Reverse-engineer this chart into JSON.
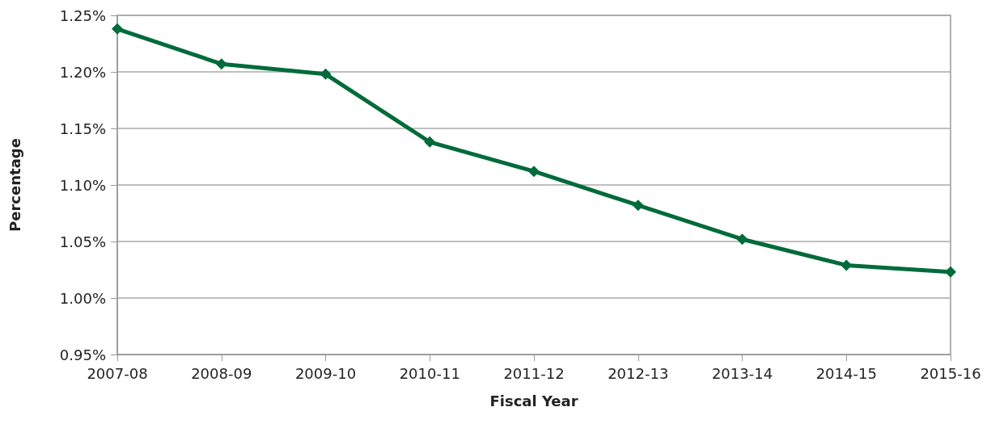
{
  "chart_data": {
    "type": "line",
    "xlabel": "Fiscal Year",
    "ylabel": "Percentage",
    "categories": [
      "2007-08",
      "2008-09",
      "2009-10",
      "2010-11",
      "2011-12",
      "2012-13",
      "2013-14",
      "2014-15",
      "2015-16"
    ],
    "series": [
      {
        "color": "#006b3a",
        "values": [
          1.238,
          1.207,
          1.198,
          1.138,
          1.112,
          1.082,
          1.052,
          1.029,
          1.023
        ]
      }
    ],
    "ylim": [
      0.95,
      1.25
    ],
    "yticks": [
      {
        "value": 0.95,
        "label": "0.95%"
      },
      {
        "value": 1.0,
        "label": "1.00%"
      },
      {
        "value": 1.05,
        "label": "1.05%"
      },
      {
        "value": 1.1,
        "label": "1.10%"
      },
      {
        "value": 1.15,
        "label": "1.15%"
      },
      {
        "value": 1.2,
        "label": "1.20%"
      },
      {
        "value": 1.25,
        "label": "1.25%"
      }
    ],
    "grid": "y",
    "marker": "diamond",
    "line_style": "solid"
  }
}
